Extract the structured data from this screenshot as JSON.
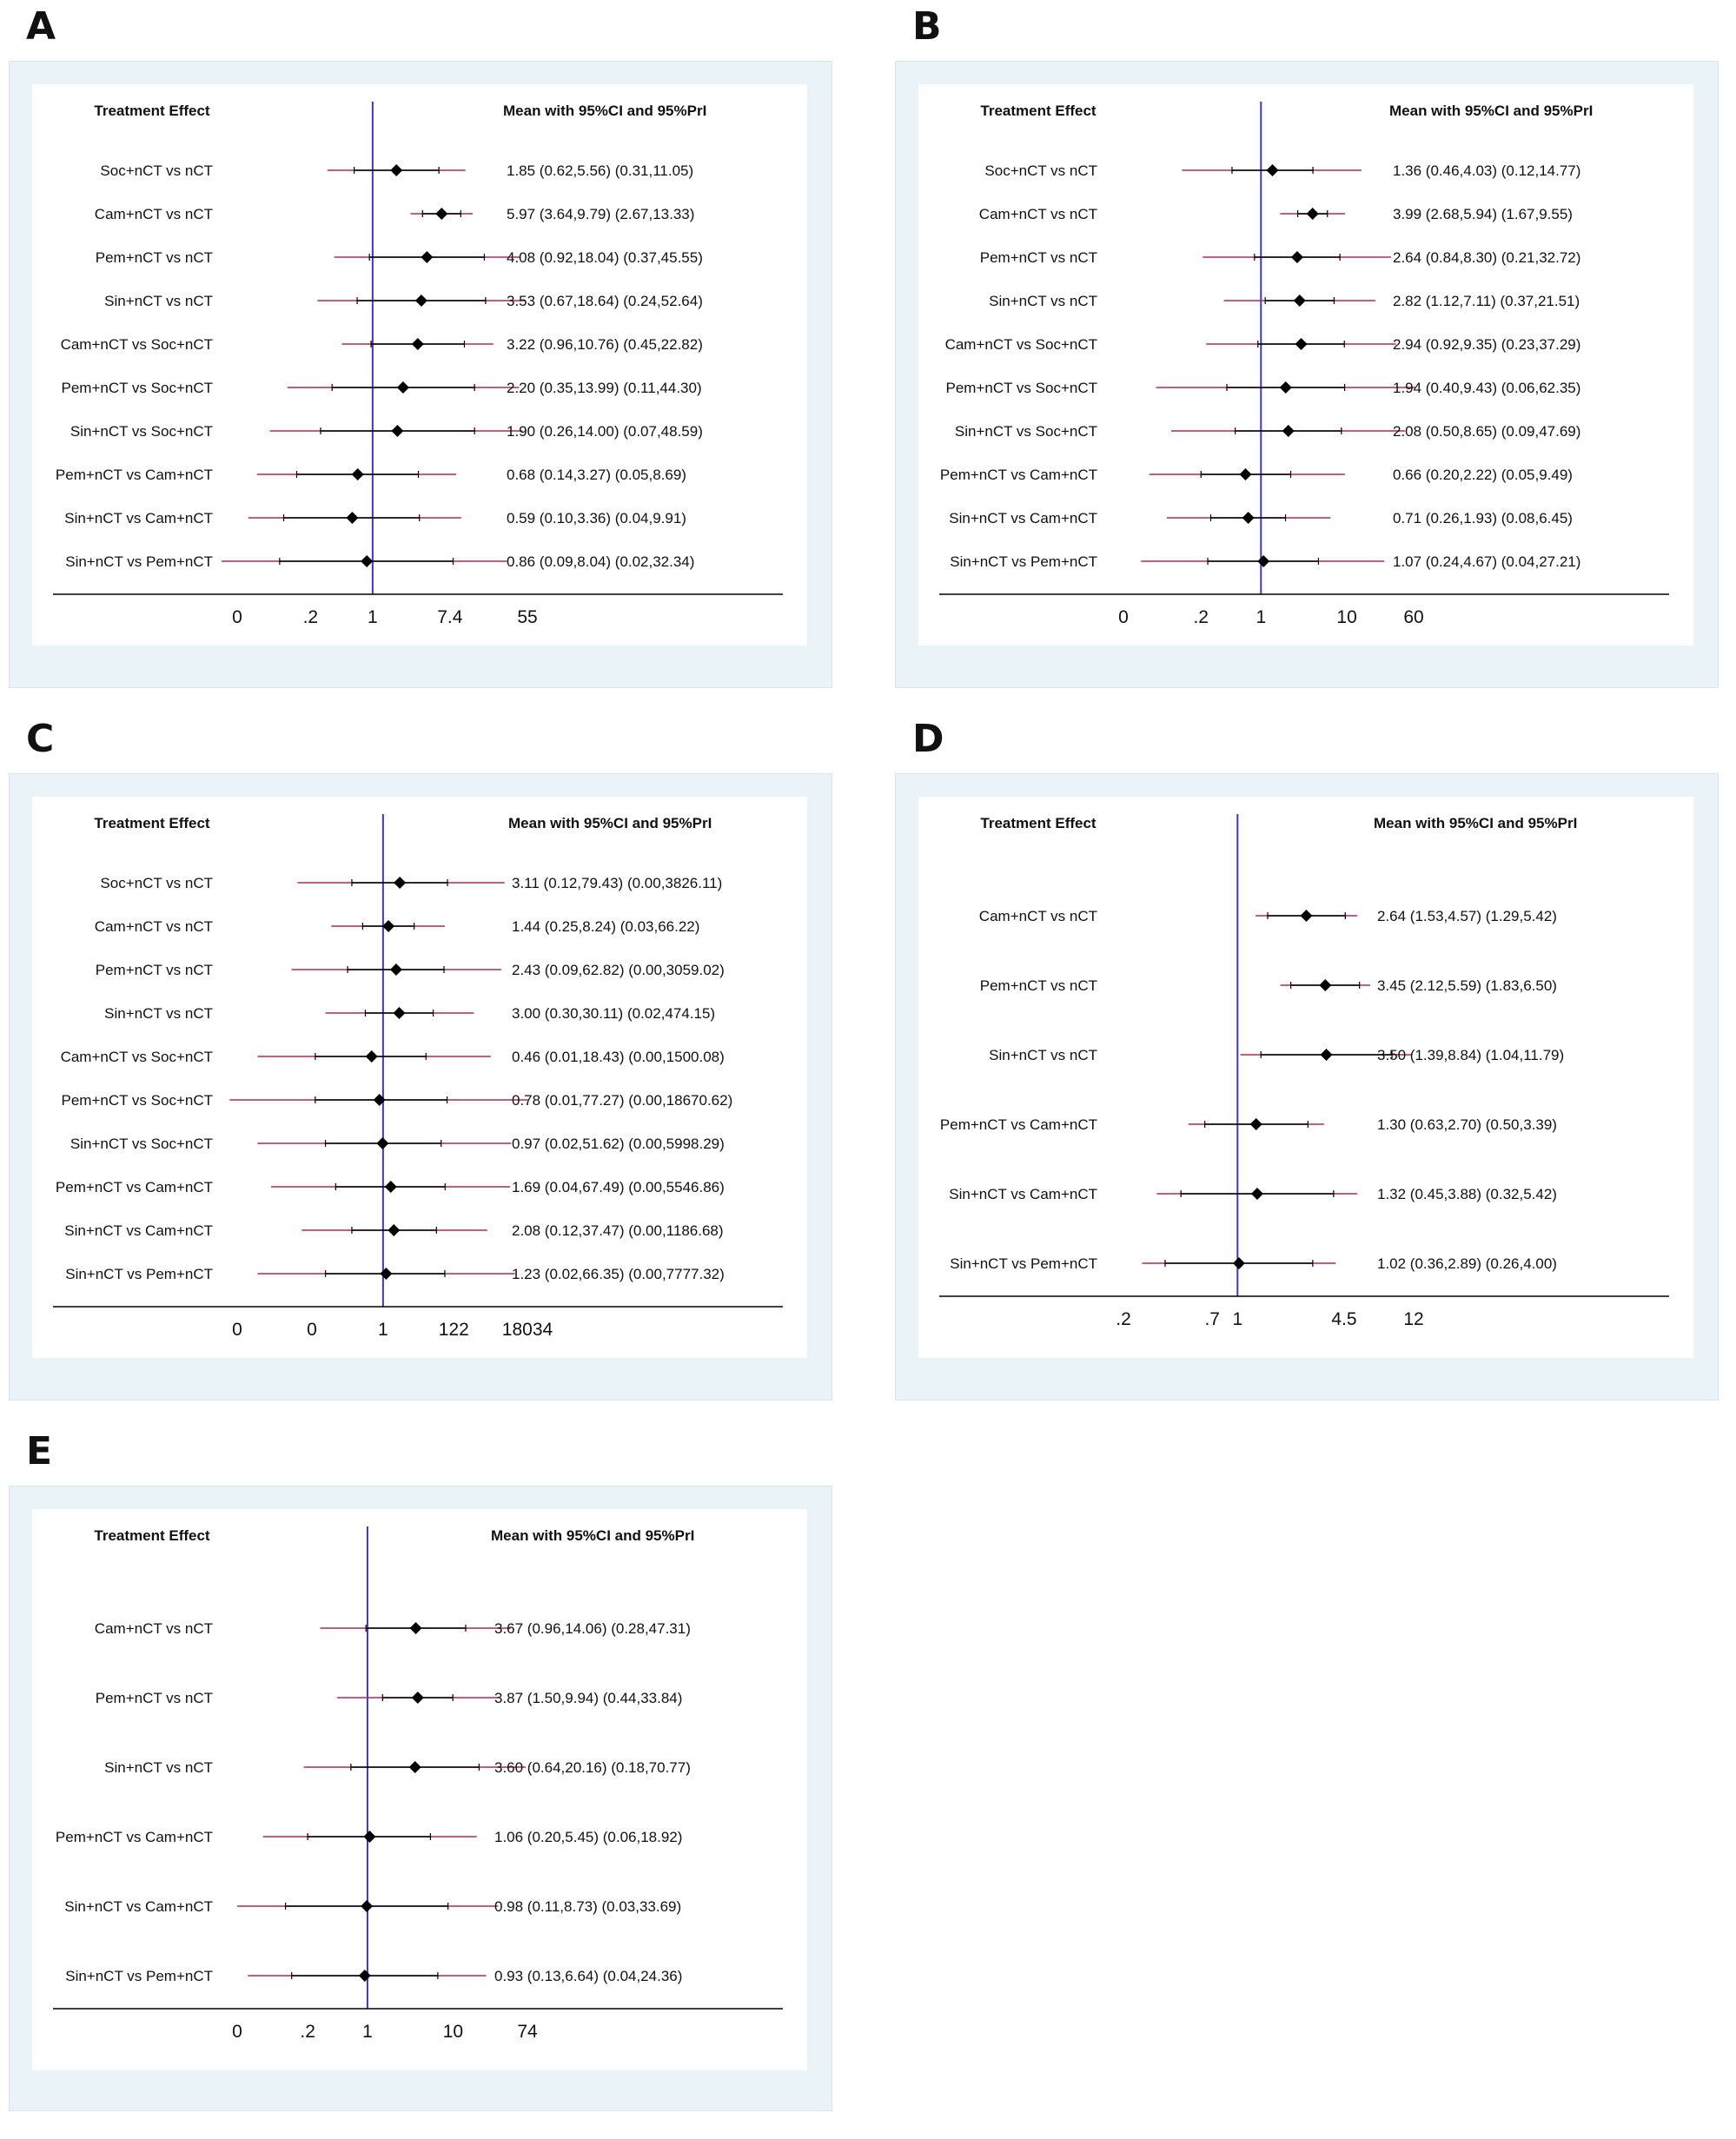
{
  "colors": {
    "frame": "#eaf3f8",
    "null_line": "#3b3bb3",
    "pri": "#b0285a",
    "ci": "#000000",
    "axis": "#000000"
  },
  "chart_data": [
    {
      "type": "forest",
      "panel": "A",
      "header_left": "Treatment Effect",
      "header_right": "Mean with 95%CI and 95%PrI",
      "axis_scale": "log",
      "null_value": 1,
      "ticks": [
        {
          "label": "0",
          "value": 0.03
        },
        {
          "label": ".2",
          "value": 0.2
        },
        {
          "label": "1",
          "value": 1
        },
        {
          "label": "7.4",
          "value": 7.4
        },
        {
          "label": "55",
          "value": 55
        }
      ],
      "rows": [
        {
          "label": "Soc+nCT vs nCT",
          "mean": 1.85,
          "ci": [
            0.62,
            5.56
          ],
          "pri": [
            0.31,
            11.05
          ],
          "ci_text": "1.85 (0.62,5.56)",
          "pri_text": "(0.31,11.05)"
        },
        {
          "label": "Cam+nCT vs nCT",
          "mean": 5.97,
          "ci": [
            3.64,
            9.79
          ],
          "pri": [
            2.67,
            13.33
          ],
          "ci_text": "5.97 (3.64,9.79)",
          "pri_text": "(2.67,13.33)"
        },
        {
          "label": "Pem+nCT vs nCT",
          "mean": 4.08,
          "ci": [
            0.92,
            18.04
          ],
          "pri": [
            0.37,
            45.55
          ],
          "ci_text": "4.08 (0.92,18.04)",
          "pri_text": "(0.37,45.55)"
        },
        {
          "label": "Sin+nCT vs nCT",
          "mean": 3.53,
          "ci": [
            0.67,
            18.64
          ],
          "pri": [
            0.24,
            52.64
          ],
          "ci_text": "3.53 (0.67,18.64)",
          "pri_text": "(0.24,52.64)"
        },
        {
          "label": "Cam+nCT vs Soc+nCT",
          "mean": 3.22,
          "ci": [
            0.96,
            10.76
          ],
          "pri": [
            0.45,
            22.82
          ],
          "ci_text": "3.22 (0.96,10.76)",
          "pri_text": "(0.45,22.82)"
        },
        {
          "label": "Pem+nCT vs Soc+nCT",
          "mean": 2.2,
          "ci": [
            0.35,
            13.99
          ],
          "pri": [
            0.11,
            44.3
          ],
          "ci_text": "2.20 (0.35,13.99)",
          "pri_text": "(0.11,44.30)"
        },
        {
          "label": "Sin+nCT vs Soc+nCT",
          "mean": 1.9,
          "ci": [
            0.26,
            14.0
          ],
          "pri": [
            0.07,
            48.59
          ],
          "ci_text": "1.90 (0.26,14.00)",
          "pri_text": "(0.07,48.59)"
        },
        {
          "label": "Pem+nCT vs Cam+nCT",
          "mean": 0.68,
          "ci": [
            0.14,
            3.27
          ],
          "pri": [
            0.05,
            8.69
          ],
          "ci_text": "0.68 (0.14,3.27)",
          "pri_text": "(0.05,8.69)"
        },
        {
          "label": "Sin+nCT vs Cam+nCT",
          "mean": 0.59,
          "ci": [
            0.1,
            3.36
          ],
          "pri": [
            0.04,
            9.91
          ],
          "ci_text": "0.59 (0.10,3.36)",
          "pri_text": "(0.04,9.91)"
        },
        {
          "label": "Sin+nCT vs Pem+nCT",
          "mean": 0.86,
          "ci": [
            0.09,
            8.04
          ],
          "pri": [
            0.02,
            32.34
          ],
          "ci_text": "0.86 (0.09,8.04)",
          "pri_text": "(0.02,32.34)"
        }
      ]
    },
    {
      "type": "forest",
      "panel": "B",
      "header_left": "Treatment Effect",
      "header_right": "Mean with 95%CI and 95%PrI",
      "axis_scale": "log",
      "null_value": 1,
      "ticks": [
        {
          "label": "0",
          "value": 0.025
        },
        {
          "label": ".2",
          "value": 0.2
        },
        {
          "label": "1",
          "value": 1
        },
        {
          "label": "10",
          "value": 10
        },
        {
          "label": "60",
          "value": 60
        }
      ],
      "rows": [
        {
          "label": "Soc+nCT vs nCT",
          "mean": 1.36,
          "ci": [
            0.46,
            4.03
          ],
          "pri": [
            0.12,
            14.77
          ],
          "ci_text": "1.36 (0.46,4.03)",
          "pri_text": "(0.12,14.77)"
        },
        {
          "label": "Cam+nCT vs nCT",
          "mean": 3.99,
          "ci": [
            2.68,
            5.94
          ],
          "pri": [
            1.67,
            9.55
          ],
          "ci_text": "3.99 (2.68,5.94)",
          "pri_text": "(1.67,9.55)"
        },
        {
          "label": "Pem+nCT vs nCT",
          "mean": 2.64,
          "ci": [
            0.84,
            8.3
          ],
          "pri": [
            0.21,
            32.72
          ],
          "ci_text": "2.64 (0.84,8.30)",
          "pri_text": "(0.21,32.72)"
        },
        {
          "label": "Sin+nCT vs nCT",
          "mean": 2.82,
          "ci": [
            1.12,
            7.11
          ],
          "pri": [
            0.37,
            21.51
          ],
          "ci_text": "2.82 (1.12,7.11)",
          "pri_text": "(0.37,21.51)"
        },
        {
          "label": "Cam+nCT vs Soc+nCT",
          "mean": 2.94,
          "ci": [
            0.92,
            9.35
          ],
          "pri": [
            0.23,
            37.29
          ],
          "ci_text": "2.94 (0.92,9.35)",
          "pri_text": "(0.23,37.29)"
        },
        {
          "label": "Pem+nCT vs Soc+nCT",
          "mean": 1.94,
          "ci": [
            0.4,
            9.43
          ],
          "pri": [
            0.06,
            62.35
          ],
          "ci_text": "1.94 (0.40,9.43)",
          "pri_text": "(0.06,62.35)"
        },
        {
          "label": "Sin+nCT vs Soc+nCT",
          "mean": 2.08,
          "ci": [
            0.5,
            8.65
          ],
          "pri": [
            0.09,
            47.69
          ],
          "ci_text": "2.08 (0.50,8.65)",
          "pri_text": "(0.09,47.69)"
        },
        {
          "label": "Pem+nCT vs Cam+nCT",
          "mean": 0.66,
          "ci": [
            0.2,
            2.22
          ],
          "pri": [
            0.05,
            9.49
          ],
          "ci_text": "0.66 (0.20,2.22)",
          "pri_text": "(0.05,9.49)"
        },
        {
          "label": "Sin+nCT vs Cam+nCT",
          "mean": 0.71,
          "ci": [
            0.26,
            1.93
          ],
          "pri": [
            0.08,
            6.45
          ],
          "ci_text": "0.71 (0.26,1.93)",
          "pri_text": "(0.08,6.45)"
        },
        {
          "label": "Sin+nCT vs Pem+nCT",
          "mean": 1.07,
          "ci": [
            0.24,
            4.67
          ],
          "pri": [
            0.04,
            27.21
          ],
          "ci_text": "1.07 (0.24,4.67)",
          "pri_text": "(0.04,27.21)"
        }
      ]
    },
    {
      "type": "forest",
      "panel": "C",
      "header_left": "Treatment Effect",
      "header_right": "Mean with 95%CI and 95%PrI",
      "axis_scale": "log",
      "null_value": 1,
      "ticks": [
        {
          "label": "0",
          "value": 5e-05
        },
        {
          "label": "0",
          "value": 0.008
        },
        {
          "label": "1",
          "value": 1
        },
        {
          "label": "122",
          "value": 122
        },
        {
          "label": "18034",
          "value": 18034
        }
      ],
      "rows": [
        {
          "label": "Soc+nCT vs nCT",
          "mean": 3.11,
          "ci": [
            0.12,
            79.43
          ],
          "pri": [
            0.003,
            3826.11
          ],
          "ci_text": "3.11 (0.12,79.43)",
          "pri_text": "(0.00,3826.11)"
        },
        {
          "label": "Cam+nCT vs nCT",
          "mean": 1.44,
          "ci": [
            0.25,
            8.24
          ],
          "pri": [
            0.03,
            66.22
          ],
          "ci_text": "1.44 (0.25,8.24)",
          "pri_text": "(0.03,66.22)"
        },
        {
          "label": "Pem+nCT vs nCT",
          "mean": 2.43,
          "ci": [
            0.09,
            62.82
          ],
          "pri": [
            0.002,
            3059.02
          ],
          "ci_text": "2.43 (0.09,62.82)",
          "pri_text": "(0.00,3059.02)"
        },
        {
          "label": "Sin+nCT vs nCT",
          "mean": 3.0,
          "ci": [
            0.3,
            30.11
          ],
          "pri": [
            0.02,
            474.15
          ],
          "ci_text": "3.00 (0.30,30.11)",
          "pri_text": "(0.02,474.15)"
        },
        {
          "label": "Cam+nCT vs Soc+nCT",
          "mean": 0.46,
          "ci": [
            0.01,
            18.43
          ],
          "pri": [
            0.0002,
            1500.08
          ],
          "ci_text": "0.46 (0.01,18.43)",
          "pri_text": "(0.00,1500.08)"
        },
        {
          "label": "Pem+nCT vs Soc+nCT",
          "mean": 0.78,
          "ci": [
            0.01,
            77.27
          ],
          "pri": [
            3e-05,
            18670.62
          ],
          "ci_text": "0.78 (0.01,77.27)",
          "pri_text": "(0.00,18670.62)"
        },
        {
          "label": "Sin+nCT vs Soc+nCT",
          "mean": 0.97,
          "ci": [
            0.02,
            51.62
          ],
          "pri": [
            0.0002,
            5998.29
          ],
          "ci_text": "0.97 (0.02,51.62)",
          "pri_text": "(0.00,5998.29)"
        },
        {
          "label": "Pem+nCT vs Cam+nCT",
          "mean": 1.69,
          "ci": [
            0.04,
            67.49
          ],
          "pri": [
            0.0005,
            5546.86
          ],
          "ci_text": "1.69 (0.04,67.49)",
          "pri_text": "(0.00,5546.86)"
        },
        {
          "label": "Sin+nCT vs Cam+nCT",
          "mean": 2.08,
          "ci": [
            0.12,
            37.47
          ],
          "pri": [
            0.004,
            1186.68
          ],
          "ci_text": "2.08 (0.12,37.47)",
          "pri_text": "(0.00,1186.68)"
        },
        {
          "label": "Sin+nCT vs Pem+nCT",
          "mean": 1.23,
          "ci": [
            0.02,
            66.35
          ],
          "pri": [
            0.0002,
            7777.32
          ],
          "ci_text": "1.23 (0.02,66.35)",
          "pri_text": "(0.00,7777.32)"
        }
      ]
    },
    {
      "type": "forest",
      "panel": "D",
      "header_left": "Treatment Effect",
      "header_right": "Mean with 95%CI and 95%PrI",
      "axis_scale": "log",
      "null_value": 1,
      "ticks": [
        {
          "label": ".2",
          "value": 0.2
        },
        {
          "label": ".7",
          "value": 0.7
        },
        {
          "label": "1",
          "value": 1
        },
        {
          "label": "4.5",
          "value": 4.5
        },
        {
          "label": "12",
          "value": 12
        }
      ],
      "rows": [
        {
          "label": "Cam+nCT vs nCT",
          "mean": 2.64,
          "ci": [
            1.53,
            4.57
          ],
          "pri": [
            1.29,
            5.42
          ],
          "ci_text": "2.64 (1.53,4.57)",
          "pri_text": "(1.29,5.42)"
        },
        {
          "label": "Pem+nCT vs nCT",
          "mean": 3.45,
          "ci": [
            2.12,
            5.59
          ],
          "pri": [
            1.83,
            6.5
          ],
          "ci_text": "3.45 (2.12,5.59)",
          "pri_text": "(1.83,6.50)"
        },
        {
          "label": "Sin+nCT vs nCT",
          "mean": 3.5,
          "ci": [
            1.39,
            8.84
          ],
          "pri": [
            1.04,
            11.79
          ],
          "ci_text": "3.50 (1.39,8.84)",
          "pri_text": "(1.04,11.79)"
        },
        {
          "label": "Pem+nCT vs Cam+nCT",
          "mean": 1.3,
          "ci": [
            0.63,
            2.7
          ],
          "pri": [
            0.5,
            3.39
          ],
          "ci_text": "1.30 (0.63,2.70)",
          "pri_text": "(0.50,3.39)"
        },
        {
          "label": "Sin+nCT vs Cam+nCT",
          "mean": 1.32,
          "ci": [
            0.45,
            3.88
          ],
          "pri": [
            0.32,
            5.42
          ],
          "ci_text": "1.32 (0.45,3.88)",
          "pri_text": "(0.32,5.42)"
        },
        {
          "label": "Sin+nCT vs Pem+nCT",
          "mean": 1.02,
          "ci": [
            0.36,
            2.89
          ],
          "pri": [
            0.26,
            4.0
          ],
          "ci_text": "1.02 (0.36,2.89)",
          "pri_text": "(0.26,4.00)"
        }
      ]
    },
    {
      "type": "forest",
      "panel": "E",
      "header_left": "Treatment Effect",
      "header_right": "Mean with 95%CI and 95%PrI",
      "axis_scale": "log",
      "null_value": 1,
      "ticks": [
        {
          "label": "0",
          "value": 0.03
        },
        {
          "label": ".2",
          "value": 0.2
        },
        {
          "label": "1",
          "value": 1
        },
        {
          "label": "10",
          "value": 10
        },
        {
          "label": "74",
          "value": 74
        }
      ],
      "rows": [
        {
          "label": "Cam+nCT vs nCT",
          "mean": 3.67,
          "ci": [
            0.96,
            14.06
          ],
          "pri": [
            0.28,
            47.31
          ],
          "ci_text": "3.67 (0.96,14.06)",
          "pri_text": "(0.28,47.31)"
        },
        {
          "label": "Pem+nCT vs nCT",
          "mean": 3.87,
          "ci": [
            1.5,
            9.94
          ],
          "pri": [
            0.44,
            33.84
          ],
          "ci_text": "3.87 (1.50,9.94)",
          "pri_text": "(0.44,33.84)"
        },
        {
          "label": "Sin+nCT vs nCT",
          "mean": 3.6,
          "ci": [
            0.64,
            20.16
          ],
          "pri": [
            0.18,
            70.77
          ],
          "ci_text": "3.60 (0.64,20.16)",
          "pri_text": "(0.18,70.77)"
        },
        {
          "label": "Pem+nCT vs Cam+nCT",
          "mean": 1.06,
          "ci": [
            0.2,
            5.45
          ],
          "pri": [
            0.06,
            18.92
          ],
          "ci_text": "1.06 (0.20,5.45)",
          "pri_text": "(0.06,18.92)"
        },
        {
          "label": "Sin+nCT vs Cam+nCT",
          "mean": 0.98,
          "ci": [
            0.11,
            8.73
          ],
          "pri": [
            0.03,
            33.69
          ],
          "ci_text": "0.98 (0.11,8.73)",
          "pri_text": "(0.03,33.69)"
        },
        {
          "label": "Sin+nCT vs Pem+nCT",
          "mean": 0.93,
          "ci": [
            0.13,
            6.64
          ],
          "pri": [
            0.04,
            24.36
          ],
          "ci_text": "0.93 (0.13,6.64)",
          "pri_text": "(0.04,24.36)"
        }
      ]
    }
  ]
}
